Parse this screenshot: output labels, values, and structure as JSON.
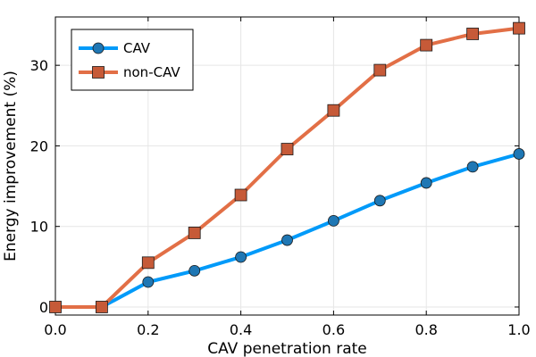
{
  "chart_data": {
    "type": "line",
    "title": "",
    "xlabel": "CAV penetration rate",
    "ylabel": "Energy improvement (%)",
    "xlim": [
      0.0,
      1.0
    ],
    "ylim": [
      -1.0,
      36.0
    ],
    "xticks": [
      0.0,
      0.2,
      0.4,
      0.6,
      0.8,
      1.0
    ],
    "xtick_labels": [
      "0.0",
      "0.2",
      "0.4",
      "0.6",
      "0.8",
      "1.0"
    ],
    "yticks": [
      0,
      10,
      20,
      30
    ],
    "ytick_labels": [
      "0",
      "10",
      "20",
      "30"
    ],
    "grid": true,
    "legend_position": "top-left",
    "x": [
      0.0,
      0.1,
      0.2,
      0.3,
      0.4,
      0.5,
      0.6,
      0.7,
      0.8,
      0.9,
      1.0
    ],
    "series": [
      {
        "name": "CAV",
        "marker": "circle",
        "color": "#009AF9",
        "marker_color": "#1F77B4",
        "values": [
          0.0,
          0.0,
          3.1,
          4.5,
          6.2,
          8.3,
          10.7,
          13.2,
          15.4,
          17.4,
          19.0
        ]
      },
      {
        "name": "non-CAV",
        "marker": "square",
        "color": "#E26F46",
        "marker_color": "#C65A38",
        "values": [
          0.0,
          0.0,
          5.5,
          9.2,
          13.9,
          19.6,
          24.4,
          29.4,
          32.5,
          33.9,
          34.6
        ]
      }
    ]
  }
}
